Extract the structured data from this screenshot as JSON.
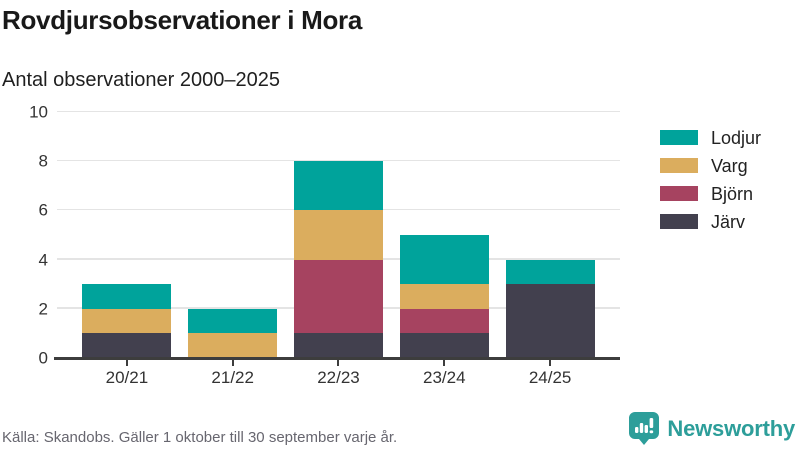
{
  "header": {
    "title": "Rovdjursobservationer i Mora",
    "subtitle": "Antal observationer 2000–2025"
  },
  "chart_data": {
    "type": "bar",
    "stacked": true,
    "title": "Rovdjursobservationer i Mora",
    "subtitle": "Antal observationer 2000–2025",
    "categories": [
      "20/21",
      "21/22",
      "22/23",
      "23/24",
      "24/25"
    ],
    "series": [
      {
        "name": "Järv",
        "color": "#42404e",
        "values": [
          1,
          0,
          1,
          1,
          3
        ]
      },
      {
        "name": "Björn",
        "color": "#a64360",
        "values": [
          0,
          0,
          3,
          1,
          0
        ]
      },
      {
        "name": "Varg",
        "color": "#dbad5e",
        "values": [
          1,
          1,
          2,
          1,
          0
        ]
      },
      {
        "name": "Lodjur",
        "color": "#00a39b",
        "values": [
          1,
          1,
          2,
          2,
          1
        ]
      }
    ],
    "totals": [
      3,
      2,
      8,
      5,
      4
    ],
    "legend_order": [
      "Lodjur",
      "Varg",
      "Björn",
      "Järv"
    ],
    "legend_position": "right",
    "xlabel": "",
    "ylabel": "",
    "ylim": [
      0,
      10
    ],
    "yticks": [
      0,
      2,
      4,
      6,
      8,
      10
    ],
    "grid": true
  },
  "footer": {
    "source": "Källa: Skandobs. Gäller 1 oktober till 30 september varje år.",
    "brand": "Newsworthy"
  },
  "colors": {
    "background": "#ffffff",
    "brand_teal": "#2d9e9a",
    "axis_line": "#3d3d3d",
    "gridline": "#e4e4e4",
    "title_text": "#191919",
    "tick_text": "#333333",
    "muted_text": "#67666f"
  }
}
